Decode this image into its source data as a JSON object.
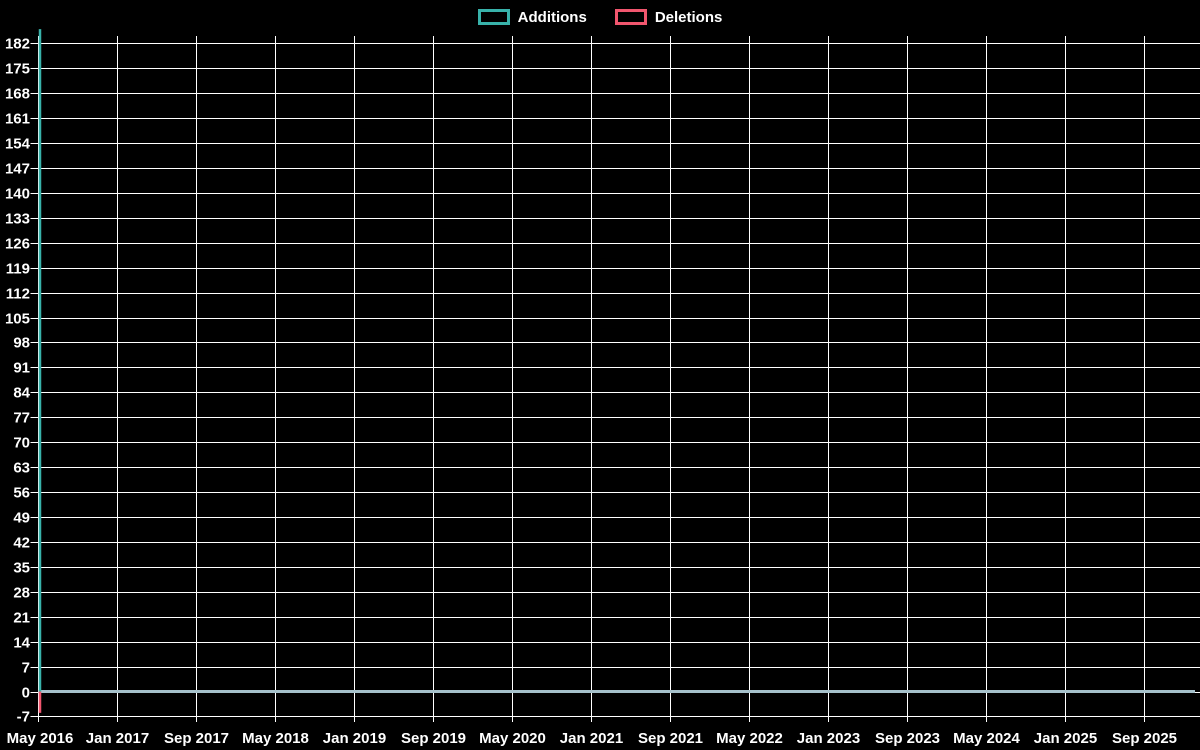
{
  "chart_data": {
    "type": "line",
    "title": "",
    "background_color": "#000000",
    "grid_color": "#ffffff",
    "text_color": "#ffffff",
    "zero_line_color": "#a6c1cb",
    "legend": [
      {
        "label": "Additions",
        "color": "#38b2aa"
      },
      {
        "label": "Deletions",
        "color": "#f1566e"
      }
    ],
    "y_axis": {
      "min": -7,
      "max": 186,
      "tick_step": 7,
      "ticks": [
        182,
        175,
        168,
        161,
        154,
        147,
        140,
        133,
        126,
        119,
        112,
        105,
        98,
        91,
        84,
        77,
        70,
        63,
        56,
        49,
        42,
        35,
        28,
        21,
        14,
        7,
        0,
        -7
      ]
    },
    "x_axis": {
      "tick_labels": [
        "May 2016",
        "Jan 2017",
        "Sep 2017",
        "May 2018",
        "Jan 2019",
        "Sep 2019",
        "May 2020",
        "Jan 2021",
        "Sep 2021",
        "May 2022",
        "Jan 2023",
        "Sep 2023",
        "May 2024",
        "Jan 2025",
        "Sep 2025"
      ],
      "tick_interval_months": 8
    },
    "series": [
      {
        "name": "Additions",
        "color": "#38b2aa",
        "peak": {
          "x": "May 2016",
          "value": 186
        },
        "baseline_value": 0
      },
      {
        "name": "Deletions",
        "color": "#f1566e",
        "peak": {
          "x": "May 2016",
          "value": -6
        },
        "baseline_value": 0
      }
    ]
  }
}
